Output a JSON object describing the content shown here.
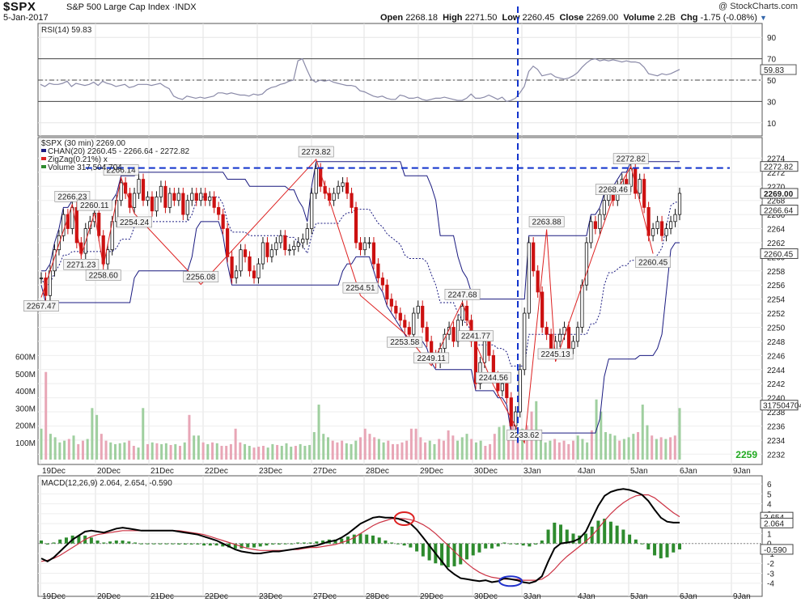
{
  "header": {
    "symbol": "$SPX",
    "name": "S&P 500 Large Cap Index",
    "exchange": "INDX",
    "date": "5-Jan-2017",
    "copyright": "@ StockCharts.com",
    "open_label": "Open",
    "open": "2268.18",
    "high_label": "High",
    "high": "2271.50",
    "low_label": "Low",
    "low": "2260.45",
    "close_label": "Close",
    "close": "2269.00",
    "volume_label": "Volume",
    "volume": "2.2B",
    "chg_label": "Chg",
    "chg": "-1.75 (-0.08%)"
  },
  "colors": {
    "up": "#111111",
    "down": "#cc1111",
    "channel": "#1a1a80",
    "zigzag": "#dd2222",
    "trend": "#1133cc",
    "rsi": "#8a8aa8",
    "rsi_fill": "#5a9a9a",
    "macd": "#000000",
    "signal": "#cc3344",
    "hist": "#2e8b2e",
    "vol_up": "#9fcf9f",
    "vol_down": "#e8a6b6",
    "green_text": "#22aa22"
  },
  "chart_data": [
    {
      "type": "line",
      "panel": "RSI",
      "label": "RSI(14) 59.83",
      "ylim": [
        0,
        100
      ],
      "ticks": [
        "90",
        "70",
        "50",
        "30",
        "10"
      ],
      "reference_lines": [
        70,
        50,
        30
      ],
      "last_value": "59.83",
      "values": [
        46,
        44,
        47,
        46,
        46,
        47,
        49,
        44,
        47,
        46,
        45,
        46,
        48,
        45,
        49,
        47,
        46,
        44,
        45,
        46,
        43,
        44,
        46,
        46,
        46,
        45,
        46,
        47,
        44,
        42,
        35,
        33,
        32,
        35,
        34,
        33,
        34,
        33,
        34,
        35,
        38,
        38,
        37,
        38,
        37,
        36,
        36,
        35,
        37,
        36,
        37,
        41,
        43,
        44,
        46,
        47,
        49,
        50,
        68,
        70,
        60,
        51,
        48,
        50,
        49,
        50,
        48,
        47,
        46,
        45,
        45,
        44,
        40,
        39,
        37,
        35,
        34,
        35,
        33,
        32,
        32,
        36,
        35,
        33,
        33,
        34,
        32,
        31,
        32,
        33,
        33,
        34,
        33,
        32,
        31,
        31,
        33,
        37,
        33,
        33,
        34,
        36,
        34,
        32,
        34,
        30,
        31,
        33,
        38,
        44,
        58,
        63,
        60,
        54,
        55,
        56,
        53,
        52,
        51,
        52,
        54,
        57,
        62,
        66,
        69,
        70,
        68,
        69,
        68,
        69,
        68,
        67,
        68,
        67,
        67,
        66,
        62,
        56,
        55,
        54,
        56,
        55,
        56,
        58,
        60
      ]
    },
    {
      "type": "candlestick",
      "panel": "Price",
      "label": "$SPX (30 min) 2269.00",
      "legend": [
        "CHAN(20) 2260.45 - 2266.64 - 2272.82",
        "ZigZag(0.21%) x",
        "Volume 317,504,704"
      ],
      "ylim": [
        2231,
        2276
      ],
      "y_ticks": [
        "2274",
        "2272",
        "2270",
        "2268",
        "2266",
        "2264",
        "2262",
        "2260",
        "2258",
        "2256",
        "2254",
        "2252",
        "2250",
        "2248",
        "2246",
        "2244",
        "2242",
        "2240",
        "2238",
        "2236",
        "2234",
        "2232"
      ],
      "x_tick_labels": [
        "19Dec",
        "20Dec",
        "21Dec",
        "22Dec",
        "23Dec",
        "27Dec",
        "28Dec",
        "29Dec",
        "30Dec",
        "3Jan",
        "4Jan",
        "5Jan",
        "6Jan",
        "9Jan"
      ],
      "zigzag_points": [
        {
          "x": "19Dec",
          "y": 2254.24
        },
        {
          "x": "19Dec",
          "y": 2267.47
        },
        {
          "x": "19Dec",
          "y": 2260.11
        },
        {
          "x": "20Dec",
          "y": 2266.23
        },
        {
          "x": "20Dec",
          "y": 2258.6
        },
        {
          "x": "20Dec",
          "y": 2271.23
        },
        {
          "x": "21Dec",
          "y": 2266.14
        },
        {
          "x": "22Dec",
          "y": 2256.08
        },
        {
          "x": "27Dec",
          "y": 2273.82
        },
        {
          "x": "29Dec",
          "y": 2254.51
        },
        {
          "x": "29Dec",
          "y": 2249.11
        },
        {
          "x": "29Dec",
          "y": 2244.56
        },
        {
          "x": "30Dec",
          "y": 2253.58
        },
        {
          "x": "30Dec",
          "y": 2241.77
        },
        {
          "x": "30Dec",
          "y": 2247.68
        },
        {
          "x": "30Dec",
          "y": 2233.62
        },
        {
          "x": "3Jan",
          "y": 2263.88
        },
        {
          "x": "3Jan",
          "y": 2245.13
        },
        {
          "x": "4Jan",
          "y": 2268.46
        },
        {
          "x": "5Jan",
          "y": 2272.82
        },
        {
          "x": "5Jan",
          "y": 2260.45
        }
      ],
      "price_callouts": [
        "2267.47",
        "2266.23",
        "2271.23",
        "2260.11",
        "2258.60",
        "2266.14",
        "2254.24",
        "2256.08",
        "2273.82",
        "2254.51",
        "2253.58",
        "2249.11",
        "2247.68",
        "2244.56",
        "2241.77",
        "2233.62",
        "2263.88",
        "2245.13",
        "2268.46",
        "2272.82",
        "2260.45"
      ],
      "last_labels": [
        "2272.82",
        "2269.00",
        "2266.64",
        "2260.45"
      ],
      "count_label": "2259",
      "closes": [
        2257,
        2254.5,
        2258,
        2261,
        2263,
        2266,
        2264,
        2267,
        2262,
        2260.5,
        2264,
        2265,
        2266.2,
        2263,
        2259,
        2261,
        2265,
        2268,
        2270.5,
        2269,
        2267,
        2269,
        2271,
        2268,
        2268.5,
        2266.5,
        2268.5,
        2270,
        2267,
        2269,
        2268,
        2269,
        2266,
        2268,
        2269,
        2268,
        2269,
        2268,
        2268.5,
        2267,
        2266,
        2264,
        2260,
        2257,
        2258,
        2261,
        2260,
        2258,
        2257,
        2259,
        2262,
        2260,
        2261,
        2262,
        2263,
        2261,
        2261,
        2261.5,
        2262,
        2262.5,
        2264,
        2269,
        2272.5,
        2270,
        2269,
        2268,
        2269,
        2270,
        2270.5,
        2269,
        2267,
        2262,
        2261,
        2262,
        2262,
        2259,
        2257,
        2256,
        2254,
        2253,
        2252,
        2251,
        2250,
        2249,
        2252,
        2253,
        2250,
        2248,
        2246,
        2245,
        2247,
        2249,
        2250,
        2248,
        2251,
        2253,
        2251,
        2248,
        2242,
        2245,
        2248,
        2246,
        2243,
        2241,
        2242,
        2240,
        2236,
        2238,
        2244,
        2252,
        2262,
        2258,
        2255,
        2250,
        2249,
        2246.5,
        2248,
        2249,
        2250,
        2247,
        2248,
        2250,
        2256,
        2262,
        2265,
        2264,
        2266,
        2268,
        2269,
        2268,
        2270,
        2271,
        2270,
        2272.5,
        2269,
        2271,
        2267,
        2263,
        2264,
        2265,
        2263,
        2264,
        2265,
        2266,
        2269
      ]
    },
    {
      "type": "bar",
      "panel": "Volume",
      "y_ticks": [
        "600M",
        "500M",
        "400M",
        "300M",
        "200M",
        "100M"
      ],
      "ylim": [
        0,
        650
      ],
      "last_label": "317504704",
      "values": [
        180,
        510,
        150,
        130,
        100,
        110,
        120,
        140,
        90,
        110,
        120,
        300,
        260,
        150,
        110,
        100,
        90,
        95,
        100,
        110,
        80,
        70,
        300,
        90,
        100,
        95,
        90,
        95,
        85,
        90,
        80,
        100,
        260,
        140,
        140,
        100,
        90,
        100,
        95,
        80,
        80,
        90,
        180,
        100,
        90,
        80,
        70,
        75,
        80,
        70,
        90,
        85,
        80,
        95,
        75,
        80,
        90,
        80,
        85,
        160,
        320,
        150,
        130,
        110,
        100,
        110,
        95,
        90,
        110,
        130,
        180,
        150,
        130,
        120,
        100,
        110,
        90,
        90,
        100,
        110,
        180,
        180,
        130,
        100,
        110,
        90,
        120,
        110,
        170,
        140,
        110,
        130,
        150,
        120,
        100,
        110,
        80,
        90,
        150,
        190,
        200,
        170,
        210,
        160,
        180,
        200,
        280,
        340,
        160,
        100,
        110,
        120,
        100,
        110,
        90,
        110,
        140,
        120,
        100,
        170,
        350,
        280,
        160,
        150,
        140,
        110,
        120,
        130,
        150,
        160,
        320,
        200,
        140,
        120,
        130,
        120,
        130,
        140,
        300
      ]
    },
    {
      "type": "line",
      "panel": "MACD",
      "label": "MACD(12,26,9) 2.064, 2.654, -0.590",
      "ylim": [
        -5,
        6.5
      ],
      "y_ticks": [
        "6",
        "5",
        "4",
        "3",
        "2",
        "1",
        "0",
        "-1",
        "-2",
        "-3",
        "-4"
      ],
      "last_labels": [
        "2.654",
        "2.064",
        "-0.590"
      ],
      "macd": [
        -1.5,
        -1.8,
        -1.4,
        -0.8,
        -0.2,
        0.4,
        0.8,
        1.2,
        1.3,
        1.2,
        1.1,
        1.3,
        1.5,
        1.6,
        1.5,
        1.4,
        1.3,
        1.3,
        1.3,
        1.3,
        1.3,
        1.3,
        1.2,
        1.1,
        1.0,
        0.9,
        0.7,
        0.5,
        0.3,
        0.0,
        -0.3,
        -0.6,
        -0.8,
        -0.9,
        -1.0,
        -1.0,
        -0.9,
        -0.8,
        -0.8,
        -0.7,
        -0.6,
        -0.5,
        -0.4,
        -0.3,
        -0.2,
        0.0,
        0.2,
        0.3,
        0.6,
        1.0,
        1.5,
        2.0,
        2.3,
        2.6,
        2.7,
        2.6,
        2.6,
        2.5,
        2.3,
        2.0,
        1.4,
        0.6,
        -0.2,
        -1.0,
        -1.8,
        -2.6,
        -3.1,
        -3.5,
        -3.6,
        -3.7,
        -3.8,
        -3.7,
        -3.9,
        -3.8,
        -3.5,
        -3.6,
        -3.7,
        -3.9,
        -4.0,
        -3.8,
        -3.3,
        -1.8,
        -0.5,
        0.0,
        0.1,
        0.2,
        0.5,
        1.2,
        2.5,
        3.8,
        4.8,
        5.2,
        5.4,
        5.5,
        5.4,
        5.2,
        4.9,
        4.3,
        3.4,
        2.6,
        2.2,
        2.1,
        2.1
      ],
      "signal": [
        -1.8,
        -1.7,
        -1.5,
        -1.2,
        -0.8,
        -0.4,
        0.0,
        0.4,
        0.7,
        0.9,
        1.0,
        1.1,
        1.2,
        1.3,
        1.3,
        1.3,
        1.3,
        1.3,
        1.3,
        1.3,
        1.3,
        1.3,
        1.3,
        1.2,
        1.1,
        1.0,
        0.9,
        0.7,
        0.5,
        0.3,
        0.1,
        -0.1,
        -0.3,
        -0.5,
        -0.6,
        -0.7,
        -0.7,
        -0.7,
        -0.7,
        -0.7,
        -0.6,
        -0.6,
        -0.5,
        -0.4,
        -0.4,
        -0.3,
        -0.2,
        -0.1,
        0.1,
        0.3,
        0.6,
        1.0,
        1.4,
        1.8,
        2.1,
        2.3,
        2.5,
        2.5,
        2.5,
        2.4,
        2.2,
        1.9,
        1.5,
        1.0,
        0.4,
        -0.2,
        -0.8,
        -1.4,
        -2.0,
        -2.5,
        -2.9,
        -3.2,
        -3.4,
        -3.5,
        -3.6,
        -3.6,
        -3.6,
        -3.7,
        -3.7,
        -3.7,
        -3.6,
        -3.2,
        -2.6,
        -1.9,
        -1.3,
        -0.8,
        -0.3,
        0.2,
        0.8,
        1.5,
        2.3,
        3.0,
        3.6,
        4.1,
        4.5,
        4.8,
        4.9,
        4.9,
        4.6,
        4.1,
        3.6,
        3.1,
        2.7
      ],
      "histogram": [
        0.3,
        -0.1,
        0.1,
        0.4,
        0.6,
        0.8,
        0.8,
        0.8,
        0.6,
        0.3,
        0.1,
        0.2,
        0.3,
        0.3,
        0.2,
        0.1,
        0.0,
        0.0,
        0.0,
        0.0,
        0.0,
        0.0,
        -0.1,
        -0.1,
        -0.1,
        -0.1,
        -0.2,
        -0.2,
        -0.2,
        -0.3,
        -0.4,
        -0.5,
        -0.5,
        -0.4,
        -0.4,
        -0.3,
        -0.2,
        -0.1,
        -0.1,
        0.0,
        0.0,
        0.1,
        0.1,
        0.1,
        0.2,
        0.3,
        0.4,
        0.4,
        0.5,
        0.7,
        0.9,
        1.0,
        0.9,
        0.8,
        0.6,
        0.3,
        0.1,
        0.0,
        -0.2,
        -0.4,
        -0.8,
        -1.3,
        -1.7,
        -2.0,
        -2.2,
        -2.4,
        -2.3,
        -2.1,
        -1.6,
        -1.2,
        -0.9,
        -0.5,
        -0.5,
        -0.3,
        0.1,
        0.0,
        -0.1,
        -0.2,
        -0.3,
        -0.1,
        0.3,
        1.4,
        2.1,
        1.9,
        1.4,
        1.0,
        0.8,
        1.0,
        1.7,
        2.3,
        2.5,
        2.2,
        1.8,
        1.4,
        0.9,
        0.4,
        0.0,
        -0.6,
        -1.2,
        -1.5,
        -1.4,
        -0.9,
        -0.6
      ]
    }
  ]
}
